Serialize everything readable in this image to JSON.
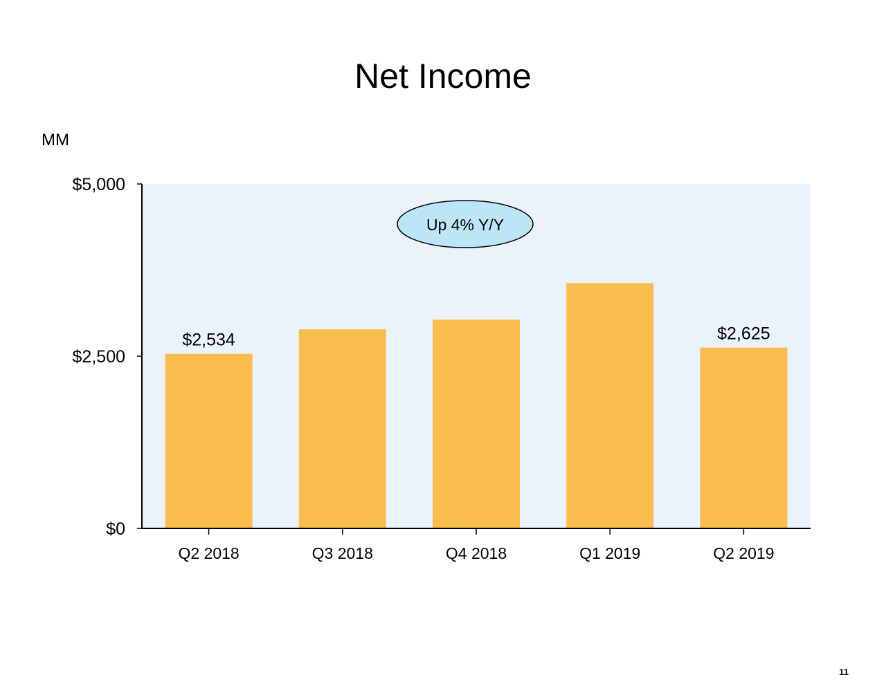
{
  "slide": {
    "title": "Net Income",
    "unit_label": "MM",
    "page_number": "11"
  },
  "chart_data": {
    "type": "bar",
    "title": "Net Income",
    "ylabel": "MM",
    "xlabel": "",
    "categories": [
      "Q2 2018",
      "Q3 2018",
      "Q4 2018",
      "Q1 2019",
      "Q2 2019"
    ],
    "values": [
      2534,
      2890,
      3030,
      3560,
      2625
    ],
    "data_labels": [
      "$2,534",
      null,
      null,
      null,
      "$2,625"
    ],
    "ylim": [
      0,
      5000
    ],
    "y_ticks": [
      0,
      2500,
      5000
    ],
    "y_tick_labels": [
      "$0",
      "$2,500",
      "$5,000"
    ],
    "grid": false,
    "legend": "none",
    "annotation": "Up 4% Y/Y",
    "colors": {
      "bar": "#F9BD4E",
      "plot_background": "#EAF3FC",
      "annotation_fill": "#BDE5F8",
      "axis": "#000000"
    }
  }
}
